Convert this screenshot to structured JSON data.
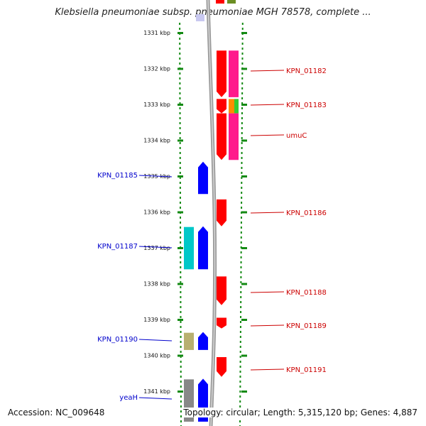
{
  "title": "Klebsiella pneumoniae subsp. pneumoniae MGH 78578, complete ...",
  "accession": "Accession: NC_009648",
  "summary": "Topology: circular; Length: 5,315,120 bp; Genes: 4,887",
  "colors": {
    "ruler": "#138a13",
    "backbone": "#888888",
    "forward_label": "#cc0000",
    "reverse_label": "#0000cc"
  },
  "ruler_ticks": [
    "1331 kbp",
    "1332 kbp",
    "1333 kbp",
    "1334 kbp",
    "1335 kbp",
    "1336 kbp",
    "1337 kbp",
    "1338 kbp",
    "1339 kbp",
    "1340 kbp",
    "1341 kbp"
  ],
  "forward_genes": [
    {
      "label": "KPN_01182",
      "start_kbp": 1331.5,
      "end_kbp": 1332.8,
      "color": "#ff0000",
      "cds_color": "#ff1a8c"
    },
    {
      "label": "KPN_01183",
      "start_kbp": 1332.85,
      "end_kbp": 1333.25,
      "color": "#ff0000",
      "cds_color": "#ff8c00"
    },
    {
      "label": "umuC",
      "start_kbp": 1333.25,
      "end_kbp": 1334.55,
      "color": "#ff0000",
      "cds_color": "#ff1a8c"
    },
    {
      "label": "KPN_01186",
      "start_kbp": 1335.65,
      "end_kbp": 1336.4,
      "color": "#ff0000",
      "cds_color": ""
    },
    {
      "label": "KPN_01188",
      "start_kbp": 1337.8,
      "end_kbp": 1338.6,
      "color": "#ff0000",
      "cds_color": ""
    },
    {
      "label": "KPN_01189",
      "start_kbp": 1338.95,
      "end_kbp": 1339.25,
      "color": "#ff0000",
      "cds_color": ""
    },
    {
      "label": "KPN_01191",
      "start_kbp": 1340.05,
      "end_kbp": 1340.6,
      "color": "#ff0000",
      "cds_color": ""
    }
  ],
  "reverse_genes": [
    {
      "label": "KPN_01185",
      "start_kbp": 1334.6,
      "end_kbp": 1335.5,
      "color": "#0000ff",
      "cds_color": ""
    },
    {
      "label": "KPN_01187",
      "start_kbp": 1336.4,
      "end_kbp": 1337.6,
      "color": "#0000ff",
      "cds_color": "#00c8c8"
    },
    {
      "label": "KPN_01190",
      "start_kbp": 1339.35,
      "end_kbp": 1339.85,
      "color": "#0000ff",
      "cds_color": "#b8b070"
    },
    {
      "label": "yeaH",
      "start_kbp": 1340.65,
      "end_kbp": 1341.85,
      "color": "#0000ff",
      "cds_color": "#888888"
    }
  ]
}
